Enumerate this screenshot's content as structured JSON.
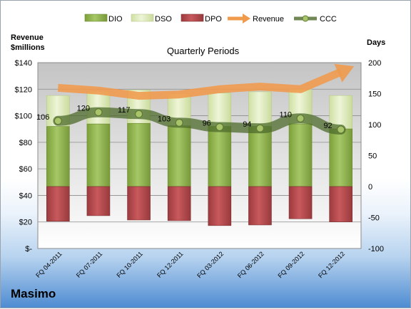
{
  "company": "Masimo",
  "chart_data": {
    "type": "bar",
    "title": "Quarterly Periods",
    "ylabel_left": "Revenue\n$millions",
    "ylabel_right": "Days",
    "categories": [
      "FQ 04-2011",
      "FQ 07-2011",
      "FQ 10-2011",
      "FQ 12-2011",
      "FQ 03-2012",
      "FQ 06-2012",
      "FQ 09-2012",
      "FQ 12-2012"
    ],
    "left_ticks": [
      "$140",
      "$120",
      "$100",
      "$80",
      "$60",
      "$40",
      "$20",
      "$-"
    ],
    "right_ticks": [
      "200",
      "150",
      "100",
      "50",
      "0",
      "-50",
      "-100"
    ],
    "ylim_left": [
      0,
      140
    ],
    "ylim_right": [
      -100,
      200
    ],
    "series": [
      {
        "name": "DIO",
        "axis": "right",
        "type": "stacked-bar",
        "values": [
          97,
          101,
          102,
          98,
          97,
          97,
          101,
          93
        ]
      },
      {
        "name": "DSO",
        "axis": "right",
        "type": "stacked-bar",
        "values": [
          50,
          53,
          54,
          52,
          54,
          56,
          56,
          54
        ]
      },
      {
        "name": "DPO",
        "axis": "right",
        "type": "negative-bar",
        "values": [
          -56,
          -47,
          -54,
          -55,
          -63,
          -62,
          -52,
          -57
        ]
      },
      {
        "name": "Revenue",
        "axis": "left",
        "type": "arrow-line",
        "values": [
          121,
          119,
          115,
          116,
          120,
          122,
          120,
          133
        ]
      },
      {
        "name": "CCC",
        "axis": "right",
        "type": "line",
        "values": [
          106,
          120,
          117,
          103,
          96,
          94,
          110,
          92
        ],
        "labels": [
          "106",
          "120",
          "117",
          "103",
          "96",
          "94",
          "110",
          "92"
        ]
      }
    ],
    "legend_position": "top",
    "colors": {
      "DIO": "#8fb34a",
      "DSO": "#dbe9b3",
      "DPO": "#b0474a",
      "Revenue": "#f09a4c",
      "CCC": "#4e6b2c"
    }
  }
}
